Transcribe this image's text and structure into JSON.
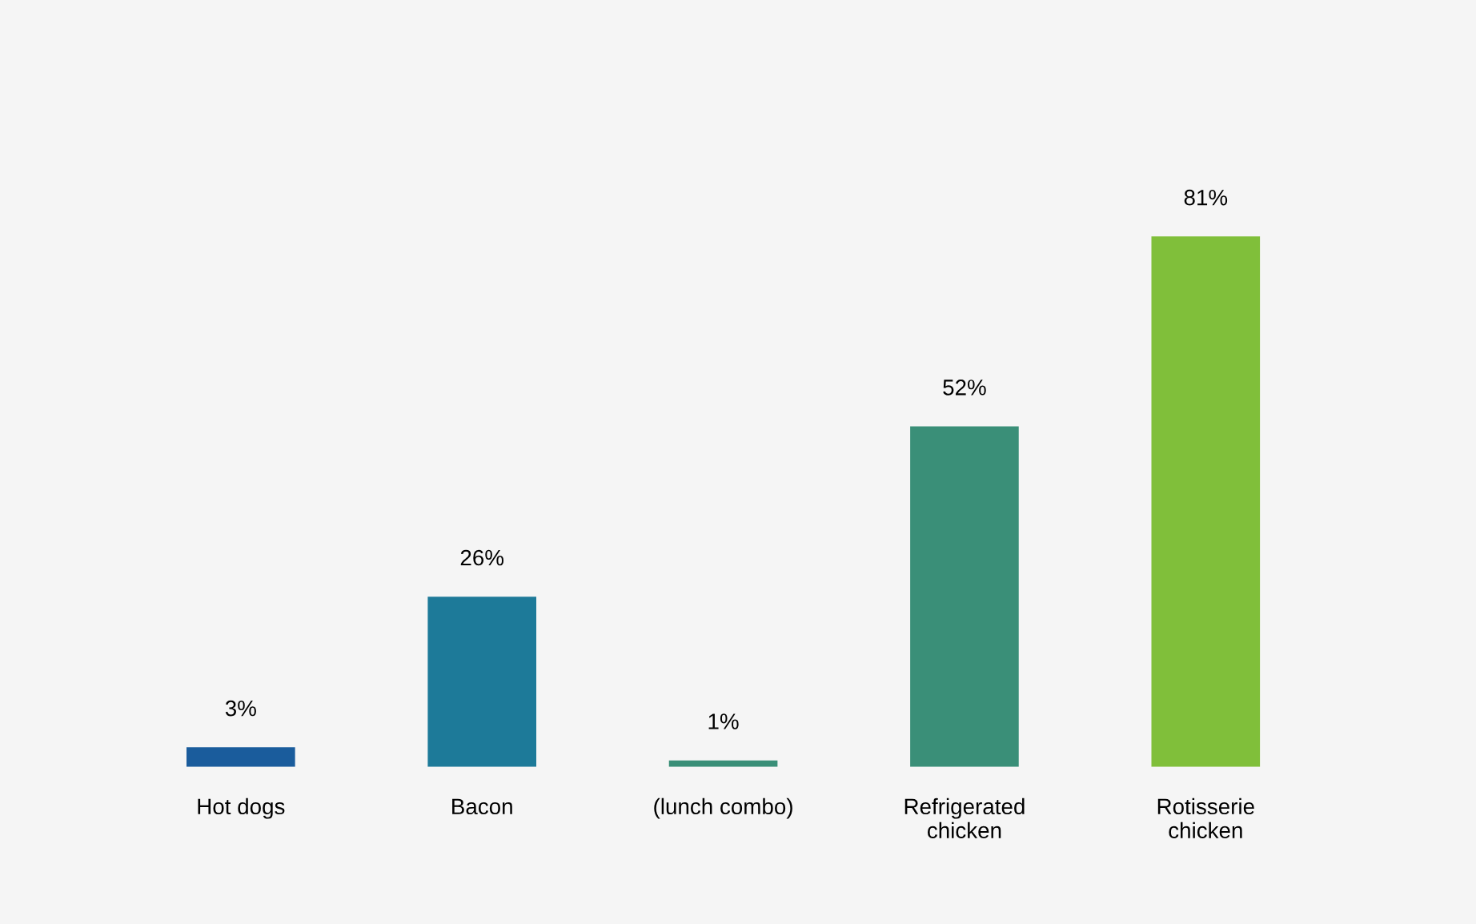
{
  "chart_data": {
    "type": "bar",
    "categories": [
      "Hot dogs",
      "Bacon",
      "(lunch combo)",
      "Refrigerated\nchicken",
      "Rotisserie\nchicken"
    ],
    "values": [
      3,
      26,
      1,
      52,
      81
    ],
    "value_labels": [
      "3%",
      "26%",
      "1%",
      "52%",
      "81%"
    ],
    "colors": [
      "#1a5c9c",
      "#1d7a99",
      "#3a8f78",
      "#3a8f78",
      "#80bf3a"
    ],
    "grid": false,
    "legend": false
  }
}
